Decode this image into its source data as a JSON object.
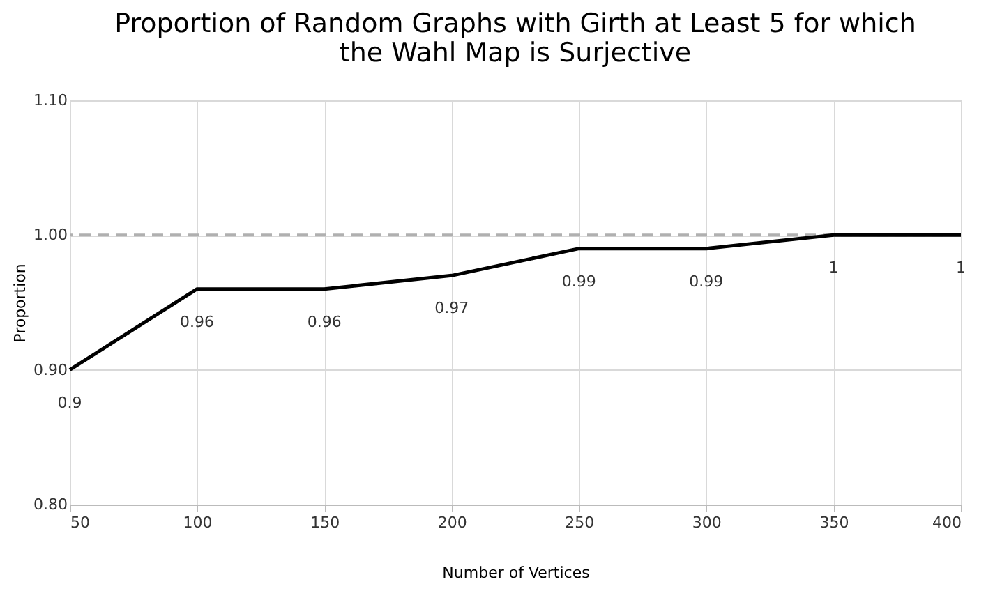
{
  "chart_data": {
    "type": "line",
    "title": [
      "Proportion of Random Graphs with Girth at Least 5 for which",
      "the Wahl Map is Surjective"
    ],
    "xlabel": "Number of Vertices",
    "ylabel": "Proportion",
    "x": [
      50,
      100,
      150,
      200,
      250,
      300,
      350,
      400
    ],
    "series": [
      {
        "color": "#000000",
        "values": [
          0.9,
          0.96,
          0.96,
          0.97,
          0.99,
          0.99,
          1,
          1
        ]
      }
    ],
    "xlim": [
      50,
      400
    ],
    "xticks": [
      50,
      100,
      150,
      200,
      250,
      300,
      350,
      400
    ],
    "ylim": [
      0.8,
      1.1
    ],
    "yticks": [
      {
        "value": 0.8,
        "label": "0.80"
      },
      {
        "value": 0.9,
        "label": "0.90"
      },
      {
        "value": 1.0,
        "label": "1.00"
      },
      {
        "value": 1.1,
        "label": "1.10"
      }
    ],
    "ref_lines": [
      {
        "axis": "y",
        "value": 1.0,
        "color": "#b0b0b0",
        "line_style": "dashed"
      }
    ],
    "data_labels": true,
    "grid": true,
    "marker": "none",
    "line_style": "solid"
  }
}
